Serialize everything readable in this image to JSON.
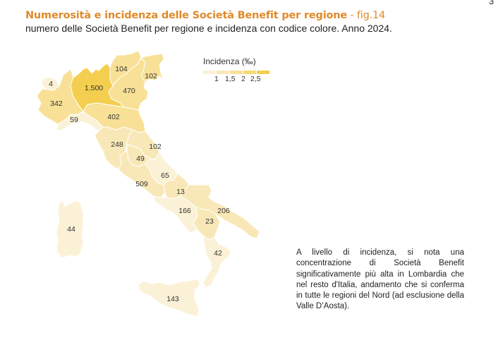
{
  "page_number": "3",
  "header": {
    "title": "Numerosità e incidenza delle Società Benefit per regione",
    "fig_label": " - fig.14",
    "subtitle": "numero delle Società Benefit per regione e incidenza con codice colore. Anno 2024."
  },
  "legend": {
    "title": "Incidenza (‰)",
    "colors": [
      "#fbf1d6",
      "#f9e8b7",
      "#f8e096",
      "#f6d875",
      "#f4cf4f"
    ],
    "labels": [
      "1",
      "1,5",
      "2",
      "2,5"
    ]
  },
  "regions": [
    {
      "name": "Valle d'Aosta",
      "value": "4",
      "color": "#fbf1d6"
    },
    {
      "name": "Piemonte",
      "value": "342",
      "color": "#f8e096"
    },
    {
      "name": "Liguria",
      "value": "59",
      "color": "#fbf1d6"
    },
    {
      "name": "Lombardia",
      "value": "1.500",
      "color": "#f4cf4f"
    },
    {
      "name": "Trentino-Alto Adige",
      "value": "104",
      "color": "#f8e096"
    },
    {
      "name": "Veneto",
      "value": "470",
      "color": "#f8e096"
    },
    {
      "name": "Friuli-Venezia Giulia",
      "value": "102",
      "color": "#f8e096"
    },
    {
      "name": "Emilia-Romagna",
      "value": "402",
      "color": "#f8e096"
    },
    {
      "name": "Toscana",
      "value": "248",
      "color": "#f9e8b7"
    },
    {
      "name": "Marche",
      "value": "102",
      "color": "#f9e8b7"
    },
    {
      "name": "Umbria",
      "value": "49",
      "color": "#f9e8b7"
    },
    {
      "name": "Lazio",
      "value": "509",
      "color": "#f9e8b7"
    },
    {
      "name": "Abruzzo",
      "value": "65",
      "color": "#fbf1d6"
    },
    {
      "name": "Molise",
      "value": "13",
      "color": "#f9e8b7"
    },
    {
      "name": "Campania",
      "value": "166",
      "color": "#fbf1d6"
    },
    {
      "name": "Puglia",
      "value": "206",
      "color": "#f9e8b7"
    },
    {
      "name": "Basilicata",
      "value": "23",
      "color": "#f9e8b7"
    },
    {
      "name": "Calabria",
      "value": "42",
      "color": "#fbf1d6"
    },
    {
      "name": "Sicilia",
      "value": "143",
      "color": "#fbf1d6"
    },
    {
      "name": "Sardegna",
      "value": "44",
      "color": "#fbf1d6"
    }
  ],
  "note": "A livello di incidenza, si nota una concentrazione di Società Benefit significativamente più alta in Lombardia che nel resto d'Italia, andamento che si conferma in tutte le regioni del Nord (ad esclusione della Valle D’Aosta)."
}
